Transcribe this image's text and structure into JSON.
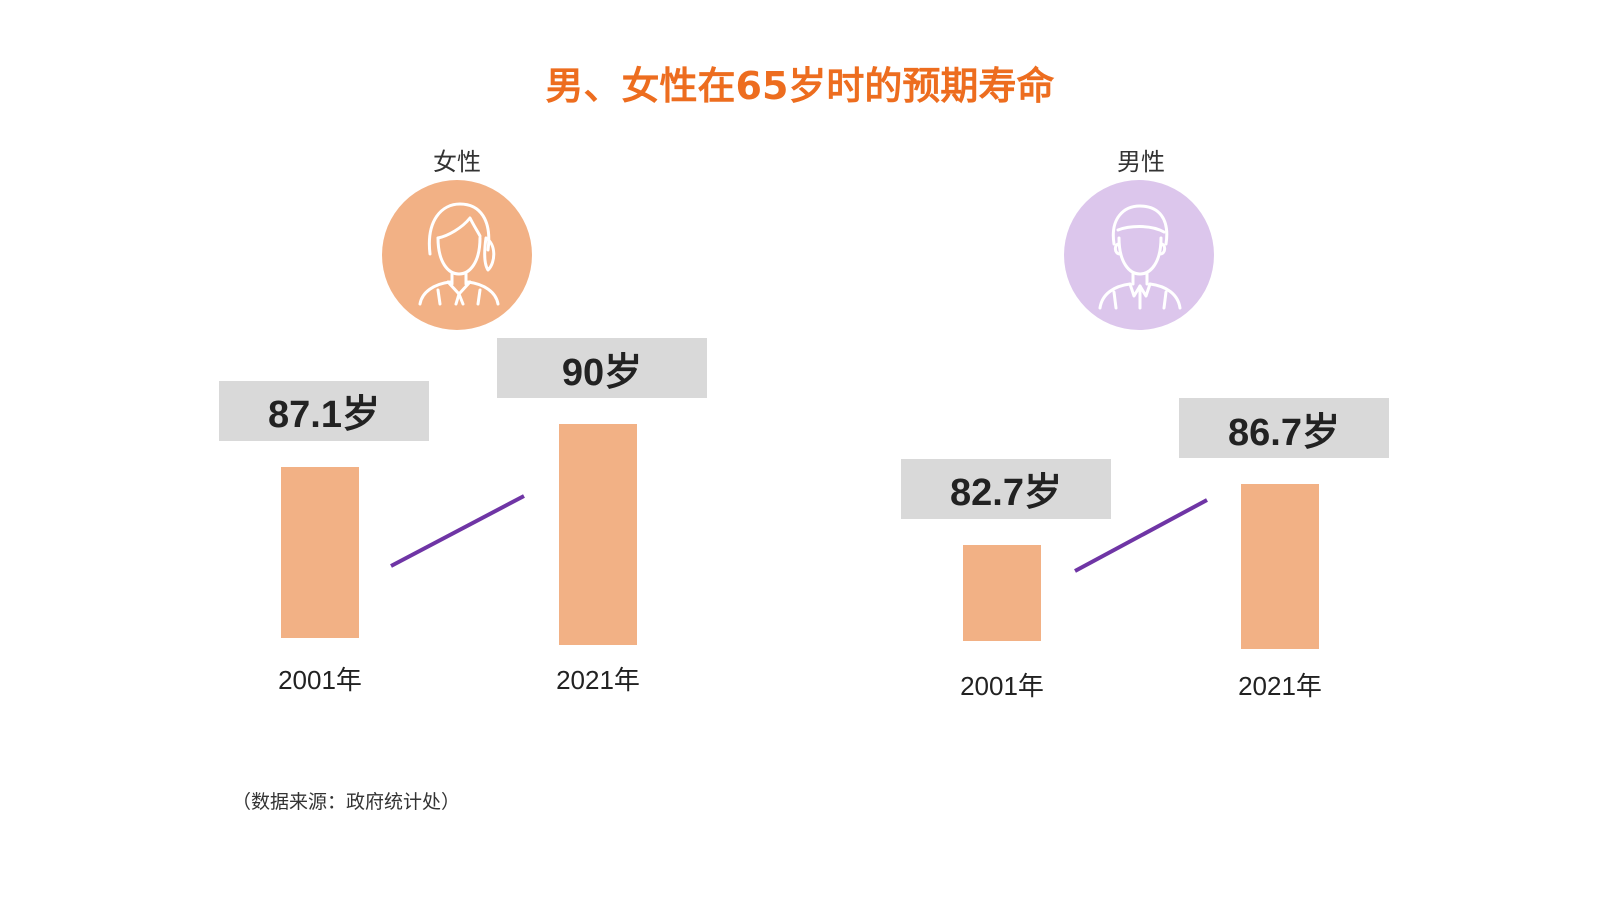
{
  "title": "男、女性在65岁时的预期寿命",
  "source": "（数据来源：政府统计处）",
  "colors": {
    "title": "#ED6D1F",
    "bar": "#F2B185",
    "connector": "#6F35A5",
    "label_box": "#D9D9D9",
    "female_avatar_bg": "#F2B185",
    "male_avatar_bg": "#DCC6EC"
  },
  "chart_data": [
    {
      "type": "bar",
      "title": "女性",
      "icon": "woman-avatar-icon",
      "categories": [
        "2001年",
        "2021年"
      ],
      "values": [
        87.1,
        90
      ],
      "value_labels": [
        "87.1岁",
        "90岁"
      ],
      "connector": "trend-up-line"
    },
    {
      "type": "bar",
      "title": "男性",
      "icon": "man-avatar-icon",
      "categories": [
        "2001年",
        "2021年"
      ],
      "values": [
        82.7,
        86.7
      ],
      "value_labels": [
        "82.7岁",
        "86.7岁"
      ],
      "connector": "trend-up-line"
    }
  ]
}
